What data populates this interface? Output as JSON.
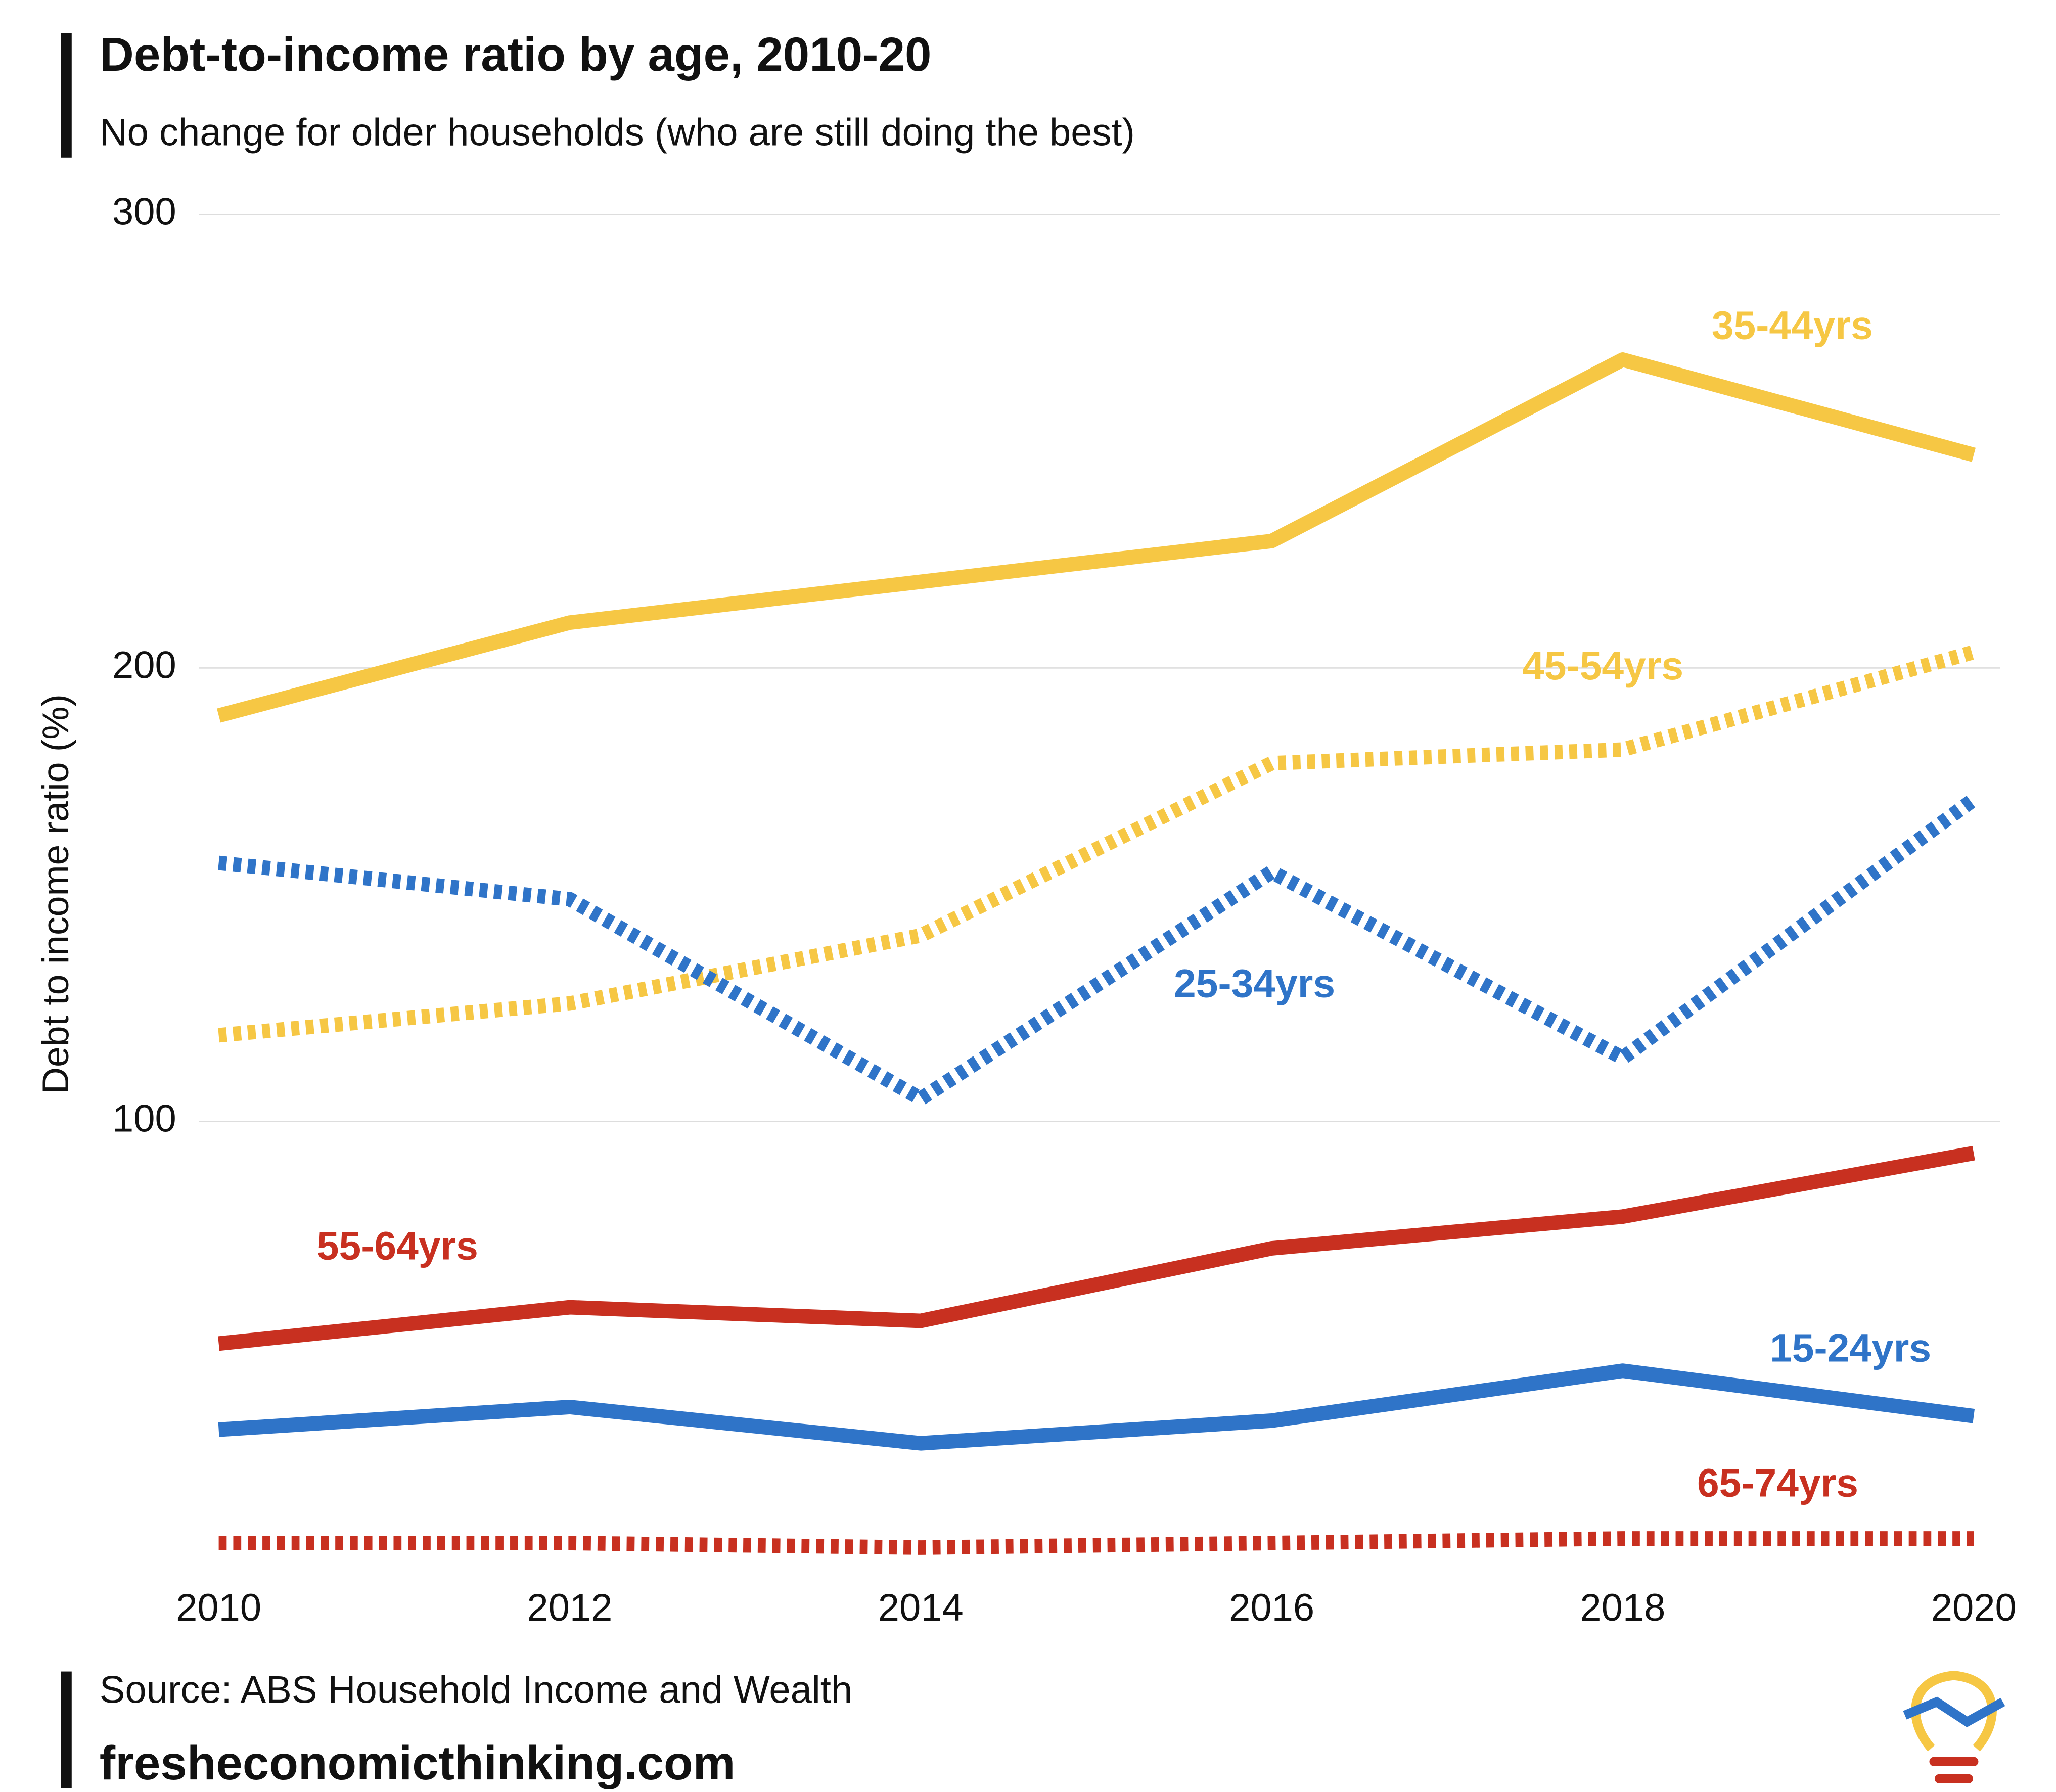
{
  "chart_data": {
    "type": "line",
    "title": "Debt-to-income ratio by age, 2010-20",
    "subtitle": "No change for older households (who are still doing the best)",
    "y_label": "Debt to income ratio (%)",
    "source": "Source: ABS Household Income and Wealth",
    "website": "fresheconomicthinking.com",
    "x": [
      2010,
      2012,
      2014,
      2016,
      2018,
      2020
    ],
    "xlim": [
      2010,
      2020
    ],
    "xticks": [
      2010,
      2012,
      2014,
      2016,
      2018,
      2020
    ],
    "ylim": [
      0,
      300
    ],
    "yticks": [
      100,
      200,
      300
    ],
    "grid": true,
    "series": [
      {
        "name": "35-44yrs",
        "color": "#f6c744",
        "style": "solid",
        "values": [
          189.5,
          210,
          219,
          228,
          268,
          247
        ]
      },
      {
        "name": "45-54yrs",
        "color": "#f6c744",
        "style": "dotted",
        "values": [
          119,
          126,
          141,
          179,
          182,
          203.5
        ]
      },
      {
        "name": "25-34yrs",
        "color": "#2f74c8",
        "style": "dotted",
        "values": [
          157,
          149,
          105,
          155,
          114,
          171
        ]
      },
      {
        "name": "55-64yrs",
        "color": "#c83020",
        "style": "solid",
        "values": [
          51,
          59,
          56,
          72,
          79,
          93
        ]
      },
      {
        "name": "15-24yrs",
        "color": "#2f74c8",
        "style": "solid",
        "values": [
          32,
          37,
          29,
          34,
          45,
          35
        ]
      },
      {
        "name": "65-74yrs",
        "color": "#c83020",
        "style": "dotted",
        "values": [
          7,
          7,
          6,
          7,
          8,
          8
        ]
      }
    ]
  }
}
